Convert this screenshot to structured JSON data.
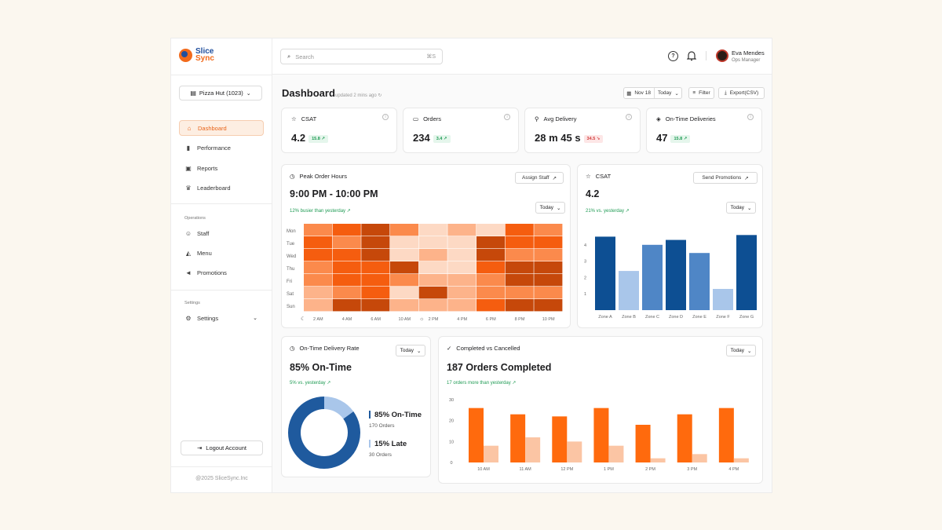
{
  "colors": {
    "accent": "#e8641a",
    "brand_blue": "#1f4e9d",
    "positive": "#1f9b54",
    "negative": "#d23b3b"
  },
  "sidebar": {
    "logo": {
      "line1": "Slice",
      "line2": "Sync"
    },
    "store_selector": {
      "value": "Pizza Hut (1023)"
    },
    "nav": [
      {
        "label": "Dashboard",
        "icon": "home-icon",
        "active": true
      },
      {
        "label": "Performance",
        "icon": "bar-chart-icon"
      },
      {
        "label": "Reports",
        "icon": "clipboard-icon"
      },
      {
        "label": "Leaderboard",
        "icon": "trophy-icon"
      }
    ],
    "operations_label": "Operations",
    "operations": [
      {
        "label": "Staff",
        "icon": "users-icon"
      },
      {
        "label": "Menu",
        "icon": "pizza-icon"
      },
      {
        "label": "Promotions",
        "icon": "megaphone-icon"
      }
    ],
    "settings_label": "Settings",
    "settings_item": {
      "label": "Settings",
      "icon": "gear-icon"
    },
    "logout": "Logout Account",
    "copyright": "@2025 SliceSync.Inc"
  },
  "topbar": {
    "search_placeholder": "Search",
    "search_shortcut": "⌘S",
    "user": {
      "name": "Eva Mendes",
      "role": "Ops Manager"
    }
  },
  "header": {
    "title": "Dashboard",
    "updated": "updated 2 mins ago",
    "date": "Nov 18",
    "range": "Today",
    "filter": "Filter",
    "export": "Export(CSV)"
  },
  "kpis": [
    {
      "title": "CSAT",
      "value": "4.2",
      "delta": "15.8",
      "trend": "up",
      "icon": "star-icon"
    },
    {
      "title": "Orders",
      "value": "234",
      "delta": "3.4",
      "trend": "up",
      "icon": "receipt-icon"
    },
    {
      "title": "Avg Delivery",
      "value": "28 m 45 s",
      "delta": "34.5",
      "trend": "down",
      "icon": "bike-icon"
    },
    {
      "title": "On-Time Deliveries",
      "value": "47",
      "delta": "15.8",
      "trend": "up",
      "icon": "shield-icon"
    }
  ],
  "peak": {
    "title": "Peak Order Hours",
    "action": "Assign Staff",
    "range": "9:00 PM - 10:00 PM",
    "hint": "12% busier than yesterday",
    "period": "Today"
  },
  "csat": {
    "title": "CSAT",
    "action": "Send Promotions",
    "value": "4.2",
    "hint": "21% vs. yesterday",
    "period": "Today"
  },
  "ontime": {
    "title": "On-Time Delivery Rate",
    "period": "Today",
    "headline": "85% On-Time",
    "hint": "5% vs. yesterday",
    "legend": [
      {
        "label": "85% On-Time",
        "sub": "170 Orders",
        "color": "#1f5a9e"
      },
      {
        "label": "15% Late",
        "sub": "30 Orders",
        "color": "#a9c6ea"
      }
    ]
  },
  "completed": {
    "title": "Completed vs Cancelled",
    "period": "Today",
    "headline": "187 Orders Completed",
    "hint": "17 orders more than yesterday"
  },
  "chart_data": [
    {
      "type": "heatmap",
      "title": "Peak Order Hours",
      "rows": [
        "Mon",
        "Tue",
        "Wed",
        "Thu",
        "Fri",
        "Sat",
        "Sun"
      ],
      "columns": [
        "2 AM",
        "4 AM",
        "6 AM",
        "10 AM",
        "2 PM",
        "4 PM",
        "6 PM",
        "8 PM",
        "10 PM"
      ],
      "column_icons": [
        "moon-icon",
        "",
        "",
        "",
        "sun-icon",
        "",
        "",
        "",
        ""
      ],
      "values": [
        [
          3,
          4,
          5,
          3,
          1,
          2,
          1,
          4,
          3
        ],
        [
          4,
          3,
          5,
          1,
          1,
          1,
          5,
          4,
          4
        ],
        [
          4,
          4,
          5,
          1,
          2,
          1,
          5,
          3,
          3
        ],
        [
          3,
          4,
          4,
          5,
          1,
          1,
          4,
          5,
          5
        ],
        [
          3,
          4,
          4,
          3,
          2,
          2,
          3,
          5,
          5
        ],
        [
          2,
          3,
          4,
          1,
          5,
          2,
          3,
          3,
          3
        ],
        [
          2,
          5,
          5,
          2,
          2,
          2,
          4,
          5,
          5
        ]
      ],
      "scale": [
        1,
        5
      ]
    },
    {
      "type": "bar",
      "title": "CSAT",
      "categories": [
        "Zone A",
        "Zone B",
        "Zone C",
        "Zone D",
        "Zone E",
        "Zone F",
        "Zone G"
      ],
      "values": [
        4.5,
        2.4,
        4.0,
        4.3,
        3.5,
        1.3,
        4.6
      ],
      "levels": [
        3,
        1,
        2,
        3,
        2,
        1,
        3
      ],
      "ylim": [
        0,
        5
      ],
      "yticks": [
        1,
        2,
        3,
        4
      ]
    },
    {
      "type": "pie",
      "title": "On-Time Delivery Rate",
      "labels": [
        "On-Time",
        "Late"
      ],
      "values": [
        85,
        15
      ]
    },
    {
      "type": "bar",
      "title": "Completed vs Cancelled",
      "categories": [
        "10 AM",
        "11 AM",
        "12 PM",
        "1 PM",
        "2 PM",
        "3 PM",
        "4 PM"
      ],
      "series": [
        {
          "name": "Completed",
          "values": [
            26,
            23,
            22,
            26,
            18,
            23,
            26
          ],
          "color": "#ff6a0d"
        },
        {
          "name": "Cancelled",
          "values": [
            8,
            12,
            10,
            8,
            2,
            4,
            2
          ],
          "color": "#fbc5a4"
        }
      ],
      "ylim": [
        0,
        33
      ],
      "yticks": [
        0,
        10,
        20,
        30
      ]
    }
  ]
}
